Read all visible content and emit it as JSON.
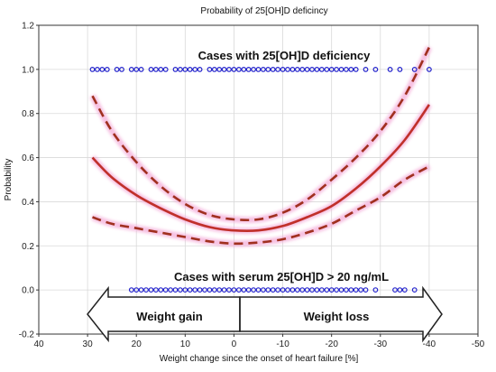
{
  "chart_data": {
    "type": "scatter",
    "title": "Probability of 25[OH]D deficincy",
    "xlabel": "Weight change since the onset of heart failure [%]",
    "ylabel": "Probability",
    "xlim": [
      40,
      -50
    ],
    "ylim": [
      -0.2,
      1.2
    ],
    "x_ticks": [
      40,
      30,
      20,
      10,
      0,
      -10,
      -20,
      -30,
      -40,
      -50
    ],
    "y_ticks": [
      -0.2,
      0.0,
      0.2,
      0.4,
      0.6,
      0.8,
      1.0,
      1.2
    ],
    "x_tick_labels": [
      "40",
      "30",
      "20",
      "10",
      "0",
      "-10",
      "-20",
      "-30",
      "-40",
      "-50"
    ],
    "y_tick_labels": [
      "-0.2",
      "0.0",
      "0.2",
      "0.4",
      "0.6",
      "0.8",
      "1.0",
      "1.2"
    ],
    "grid": true,
    "annotations": {
      "deficiency": "Cases with 25[OH]D deficiency",
      "normal": "Cases with serum 25[OH]D > 20 ng/mL",
      "gain": "Weight gain",
      "loss": "Weight loss"
    },
    "series": [
      {
        "kind": "points",
        "color": "#2222cc",
        "y": 1.0,
        "x": [
          29,
          28,
          27,
          26,
          24,
          23,
          21,
          20,
          19,
          17,
          16,
          15,
          14,
          12,
          11,
          10,
          9,
          8,
          7,
          5,
          4,
          3,
          2,
          1,
          0,
          -1,
          -2,
          -3,
          -4,
          -5,
          -6,
          -7,
          -8,
          -9,
          -10,
          -11,
          -12,
          -13,
          -14,
          -15,
          -16,
          -17,
          -18,
          -19,
          -20,
          -21,
          -22,
          -23,
          -24,
          -25,
          -27,
          -29,
          -32,
          -34,
          -37,
          -40
        ]
      },
      {
        "kind": "points",
        "color": "#2222cc",
        "y": 0.0,
        "x": [
          21,
          20,
          19,
          18,
          17,
          16,
          15,
          14,
          13,
          12,
          11,
          10,
          9,
          8,
          7,
          6,
          5,
          4,
          3,
          2,
          1,
          0,
          -1,
          -2,
          -3,
          -4,
          -5,
          -6,
          -7,
          -8,
          -9,
          -10,
          -11,
          -12,
          -13,
          -14,
          -15,
          -16,
          -17,
          -18,
          -19,
          -20,
          -21,
          -22,
          -23,
          -24,
          -25,
          -26,
          -27,
          -29,
          -33,
          -34,
          -35,
          -37
        ]
      },
      {
        "kind": "fit",
        "color": "#c0302a",
        "x": [
          29,
          25,
          20,
          15,
          10,
          5,
          0,
          -5,
          -10,
          -15,
          -20,
          -25,
          -30,
          -35,
          -40
        ],
        "y": [
          0.6,
          0.51,
          0.43,
          0.37,
          0.32,
          0.285,
          0.27,
          0.27,
          0.29,
          0.33,
          0.38,
          0.46,
          0.56,
          0.68,
          0.84
        ]
      },
      {
        "kind": "upper_ci",
        "color": "#a0301f",
        "x": [
          29,
          25,
          20,
          15,
          10,
          5,
          0,
          -5,
          -10,
          -15,
          -20,
          -25,
          -30,
          -35,
          -40
        ],
        "y": [
          0.88,
          0.72,
          0.58,
          0.47,
          0.39,
          0.34,
          0.32,
          0.32,
          0.35,
          0.41,
          0.5,
          0.6,
          0.72,
          0.88,
          1.1
        ]
      },
      {
        "kind": "lower_ci",
        "color": "#a0301f",
        "x": [
          29,
          25,
          20,
          15,
          10,
          5,
          0,
          -5,
          -10,
          -15,
          -20,
          -25,
          -30,
          -35,
          -40
        ],
        "y": [
          0.33,
          0.3,
          0.28,
          0.26,
          0.24,
          0.22,
          0.21,
          0.215,
          0.23,
          0.26,
          0.3,
          0.36,
          0.42,
          0.5,
          0.56
        ]
      }
    ]
  }
}
